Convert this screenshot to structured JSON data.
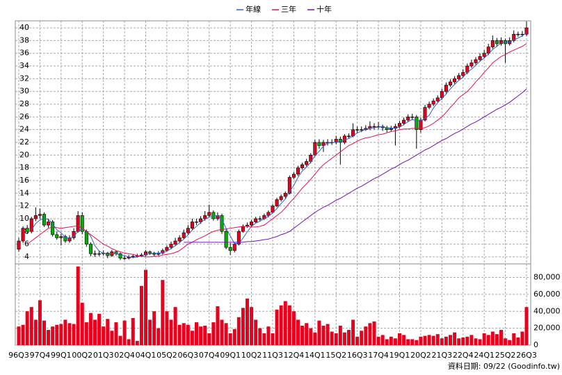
{
  "chart_data": {
    "type": "candlestick",
    "source": "資料日期: 09/22  (Goodinfo.tw)",
    "categories": [
      "96Q3",
      null,
      null,
      null,
      null,
      "97Q4",
      null,
      null,
      null,
      null,
      "99Q1",
      null,
      null,
      null,
      null,
      "00Q2",
      null,
      null,
      null,
      null,
      "01Q3",
      null,
      null,
      null,
      null,
      "02Q4",
      null,
      null,
      null,
      null,
      "04Q1",
      null,
      null,
      null,
      null,
      "05Q2",
      null,
      null,
      null,
      null,
      "06Q3",
      null,
      null,
      null,
      null,
      "07Q4",
      null,
      null,
      null,
      null,
      "09Q1",
      null,
      null,
      null,
      null,
      "10Q2",
      null,
      null,
      null,
      null,
      "11Q3",
      null,
      null,
      null,
      null,
      "12Q4",
      null,
      null,
      null,
      null,
      "14Q1",
      null,
      null,
      null,
      null,
      "15Q2",
      null,
      null,
      null,
      null,
      "16Q3",
      null,
      null,
      null,
      null,
      "17Q4",
      null,
      null,
      null,
      null,
      "19Q1",
      null,
      null,
      null,
      null,
      "20Q2",
      null,
      null,
      null,
      null,
      "21Q3",
      null,
      null,
      null,
      null,
      "22Q4",
      null,
      null,
      null,
      null,
      "24Q1",
      null,
      null,
      null,
      null,
      "25Q2",
      null,
      null,
      null,
      null,
      "26Q3"
    ],
    "open": [
      5.2,
      6.5,
      8.5,
      8,
      10,
      10.5,
      10.7,
      9,
      9.5,
      7.5,
      7,
      7.2,
      6.5,
      7,
      8,
      10.5,
      8,
      6,
      4.5,
      4.5,
      4.5,
      4.6,
      4.2,
      4.8,
      4.5,
      3.8,
      3.8,
      4,
      4.1,
      4.2,
      4.3,
      4.8,
      4.6,
      4.4,
      4.6,
      5,
      5.5,
      6,
      6.5,
      7,
      7.8,
      8.5,
      9.5,
      9.5,
      10,
      10.5,
      11,
      10,
      10.5,
      8,
      5.5,
      5,
      6,
      8,
      8.8,
      9,
      9.5,
      10,
      10,
      10.5,
      11,
      12,
      13,
      13.5,
      14,
      16.5,
      17,
      18,
      18.5,
      19,
      20,
      22,
      21.5,
      22,
      22,
      22,
      22.5,
      22,
      23,
      23,
      24,
      24,
      24,
      24.2,
      24.5,
      24.5,
      24.5,
      24.3,
      24,
      24.2,
      24.5,
      25,
      25.5,
      26,
      26,
      24,
      25.5,
      27.5,
      28,
      28.5,
      29,
      30,
      31,
      31.5,
      32,
      32.5,
      33,
      34,
      34.5,
      35,
      35.5,
      36,
      37,
      38,
      37.5,
      38,
      37.5,
      38,
      39,
      39,
      39
    ],
    "high": [
      7,
      8.8,
      9,
      10.3,
      11.8,
      11.6,
      11,
      10,
      9.8,
      8,
      7.6,
      7.5,
      7.4,
      8.5,
      11.2,
      11,
      8.3,
      6.3,
      5,
      5,
      5,
      4.8,
      5.1,
      5,
      4.7,
      4.2,
      4.3,
      4.4,
      4.5,
      4.6,
      5.1,
      5,
      4.8,
      4.9,
      5.3,
      5.8,
      6.4,
      7,
      7.4,
      8.3,
      9,
      10,
      10,
      10.4,
      11.2,
      12.2,
      11.3,
      11,
      10.8,
      8.3,
      6.2,
      6.3,
      8.3,
      9.1,
      9.4,
      9.8,
      10.3,
      10.4,
      10.8,
      11.3,
      12.3,
      13.3,
      13.8,
      14.3,
      16.8,
      17.3,
      18.3,
      18.8,
      19.4,
      20.3,
      22.4,
      22.5,
      22.4,
      22.5,
      22.5,
      23,
      22.9,
      23.3,
      23.4,
      25,
      24.5,
      24.5,
      24.7,
      25.3,
      25,
      25.2,
      24.8,
      24.6,
      24.6,
      24.9,
      25.4,
      25.9,
      26.4,
      26.5,
      26.3,
      25.9,
      27.9,
      28.4,
      28.9,
      29.4,
      30.4,
      31.4,
      31.9,
      32.4,
      32.9,
      33.5,
      34.4,
      35,
      35.4,
      36,
      36.5,
      37.5,
      38.8,
      38.4,
      38.5,
      38.3,
      38.5,
      39.6,
      39.4,
      39.5,
      41
    ],
    "low": [
      4.8,
      6.2,
      7.6,
      7.7,
      9.6,
      10,
      8.7,
      8.6,
      7.2,
      6.7,
      5.8,
      6.2,
      6.2,
      6.7,
      7.8,
      7.6,
      5.6,
      4.1,
      4,
      4.1,
      4.2,
      3.8,
      4,
      4.2,
      3.5,
      3.5,
      3.6,
      3.8,
      3.9,
      4,
      4.1,
      4.3,
      4.1,
      4.2,
      4.4,
      4.8,
      5.2,
      5.7,
      6.2,
      6.8,
      7.5,
      8.2,
      9,
      9.2,
      9.7,
      10.2,
      9.7,
      9.7,
      7.6,
      5.2,
      4.3,
      4.7,
      5.8,
      7.8,
      8.6,
      8.8,
      9.3,
      9.6,
      9.8,
      10.2,
      10.8,
      11.8,
      12.7,
      13.2,
      13.8,
      16.2,
      16.7,
      17.7,
      18.2,
      18.7,
      19.8,
      21,
      20.5,
      21.5,
      21.6,
      21.7,
      18.5,
      21.7,
      22.6,
      22.8,
      23.5,
      23.6,
      23.8,
      23.9,
      24,
      24.1,
      23.8,
      23.6,
      23.7,
      21.5,
      24.2,
      24.7,
      25.2,
      25.5,
      21,
      23.5,
      25.3,
      27.2,
      27.7,
      28.2,
      28.7,
      29.7,
      30.7,
      31.2,
      31.7,
      32.2,
      32.7,
      33.7,
      34.2,
      34.7,
      35.2,
      35.7,
      36.7,
      37,
      37.2,
      34.5,
      37.2,
      37.7,
      38.6,
      38.6,
      38.7
    ],
    "close": [
      6.5,
      8.5,
      8,
      10,
      10.5,
      10.7,
      9,
      9.5,
      7.5,
      7,
      7.2,
      6.5,
      7,
      8,
      10.5,
      8,
      6,
      4.5,
      4.5,
      4.5,
      4.6,
      4.2,
      4.8,
      4.5,
      3.8,
      3.8,
      4,
      4.1,
      4.2,
      4.3,
      4.8,
      4.6,
      4.4,
      4.6,
      5,
      5.5,
      6,
      6.5,
      7,
      7.8,
      8.5,
      9.5,
      9.5,
      10,
      10.5,
      11,
      10,
      10.5,
      8,
      5.5,
      5,
      6,
      8,
      8.8,
      9,
      9.5,
      10,
      10,
      10.5,
      11,
      12,
      13,
      13.5,
      14,
      16.5,
      17,
      18,
      18.5,
      19,
      20,
      22,
      21.5,
      22,
      22,
      22,
      22.5,
      22,
      23,
      23,
      24,
      24,
      24,
      24.2,
      24.5,
      24.5,
      24.5,
      24.3,
      24,
      24.2,
      24.5,
      25,
      25.5,
      26,
      26,
      24,
      25.5,
      27.5,
      28,
      28.5,
      29,
      30,
      31,
      31.5,
      32,
      32.5,
      33,
      34,
      34.5,
      35,
      35.5,
      36,
      37,
      38,
      37.5,
      38,
      37.5,
      38,
      39,
      39,
      39,
      40
    ],
    "up_color": "#e8001c",
    "down_color": "#00b000",
    "series": [
      {
        "name": "年線",
        "color": "#3060d0",
        "values": [
          null,
          null,
          null,
          8.25,
          9.25,
          9.8,
          10.05,
          9.9,
          9.2,
          8.25,
          7.8,
          7.05,
          6.9,
          7.2,
          8,
          8.4,
          8.1,
          7.25,
          5.75,
          4.9,
          4.55,
          4.45,
          4.5,
          4.5,
          4.3,
          4.2,
          4.0,
          3.9,
          4.0,
          4.15,
          4.35,
          4.5,
          4.5,
          4.6,
          4.65,
          4.9,
          5.3,
          5.75,
          6.25,
          6.8,
          7.45,
          8.2,
          8.8,
          9.4,
          9.9,
          10.25,
          10.4,
          10.5,
          9.9,
          8.5,
          7.25,
          6.1,
          6.1,
          6.95,
          7.95,
          8.8,
          9.3,
          9.6,
          10,
          10.4,
          10.9,
          11.6,
          12.4,
          13.1,
          14.25,
          15.25,
          16.5,
          17.5,
          18.1,
          18.9,
          19.9,
          20.6,
          21.4,
          21.9,
          21.9,
          22.1,
          22.1,
          22.4,
          22.6,
          23,
          23.5,
          23.75,
          24.05,
          24.2,
          24.3,
          24.4,
          24.45,
          24.3,
          24.25,
          24.25,
          24.4,
          24.8,
          25.25,
          25.6,
          25.4,
          25.4,
          25.75,
          26.25,
          27.4,
          28.25,
          28.9,
          29.6,
          30.4,
          31.1,
          31.75,
          32.25,
          33,
          33.5,
          34.1,
          34.75,
          35.25,
          35.9,
          36.6,
          37.1,
          37.6,
          37.75,
          37.75,
          38.1,
          38.4,
          38.75,
          39.25
        ]
      },
      {
        "name": "三年",
        "color": "#e0105a",
        "values": [
          null,
          null,
          6,
          6.5,
          7,
          7.5,
          8,
          8.5,
          8.7,
          8.6,
          8.5,
          8.6,
          8.7,
          8.8,
          8.9,
          8.5,
          8,
          7.5,
          7,
          6.5,
          6.0,
          5.7,
          5.3,
          5.0,
          4.8,
          4.6,
          4.5,
          4.4,
          4.2,
          4.1,
          4.0,
          4.0,
          4.1,
          4.1,
          4.3,
          4.4,
          4.5,
          4.7,
          5.0,
          5.5,
          6.0,
          6.3,
          6.7,
          7.0,
          7.3,
          7.7,
          8.0,
          8.2,
          8.3,
          8.4,
          8.5,
          8.6,
          8.7,
          8.8,
          8.8,
          8.7,
          8.7,
          8.8,
          9.0,
          9.5,
          10,
          10.5,
          11,
          11.7,
          12.5,
          13.2,
          14,
          14.8,
          15.5,
          16.2,
          17,
          17.8,
          18.5,
          19,
          19.5,
          20,
          20.5,
          21,
          21.5,
          21.8,
          22.2,
          22.5,
          22.7,
          22.8,
          23,
          23.2,
          23.3,
          23.5,
          23.7,
          23.8,
          24,
          24.1,
          24.1,
          24.2,
          24.2,
          24.2,
          24.3,
          24.6,
          25,
          25.5,
          26,
          26.7,
          27.5,
          28.2,
          29,
          29.5,
          30,
          30.7,
          31.5,
          32.2,
          33,
          33.7,
          34.5,
          35,
          35.5,
          35.8,
          36.2,
          36.5,
          36.8,
          37.1,
          37.5
        ]
      },
      {
        "name": "十年",
        "color": "#7a10b0",
        "values": [
          null,
          null,
          null,
          null,
          null,
          null,
          null,
          null,
          null,
          null,
          null,
          null,
          null,
          null,
          null,
          null,
          null,
          null,
          null,
          null,
          null,
          null,
          null,
          null,
          null,
          null,
          null,
          null,
          null,
          null,
          null,
          null,
          null,
          null,
          null,
          null,
          null,
          null,
          null,
          6.3,
          6.3,
          6.3,
          6.3,
          6.3,
          6.3,
          6.3,
          6.3,
          6.3,
          6.3,
          6.3,
          6.3,
          6.3,
          6.3,
          6.3,
          6.4,
          6.4,
          6.5,
          6.6,
          6.7,
          6.8,
          7.0,
          7.2,
          7.5,
          7.7,
          8.0,
          8.5,
          9.0,
          9.5,
          10,
          10.5,
          11,
          11.4,
          11.8,
          12.1,
          12.5,
          12.9,
          13.2,
          13.6,
          14,
          14.4,
          14.8,
          15.1,
          15.5,
          15.9,
          16.3,
          16.6,
          17,
          17.4,
          17.8,
          18.1,
          18.5,
          18.9,
          19.2,
          19.6,
          20,
          20.4,
          20.8,
          21.1,
          21.5,
          21.9,
          22.3,
          22.6,
          23,
          23.4,
          23.7,
          24.1,
          24.5,
          24.9,
          25.2,
          25.6,
          26,
          26.4,
          26.8,
          27.2,
          27.5,
          27.9,
          28.3,
          28.8,
          29.3,
          29.8,
          30.4
        ]
      }
    ],
    "ylim": [
      2.9,
      41.1
    ],
    "yticks": [
      4,
      6,
      8,
      10,
      12,
      14,
      16,
      18,
      20,
      22,
      24,
      26,
      28,
      30,
      32,
      34,
      36,
      38,
      40
    ],
    "grid": true,
    "volume": {
      "color": "#e8001c",
      "ylim": [
        0,
        96000
      ],
      "yticks": [
        0,
        {
          "value": 20000,
          "label": "20,000"
        },
        {
          "value": 40000,
          "label": "40,000"
        },
        {
          "value": 60000,
          "label": "60,000"
        },
        {
          "value": 80000,
          "label": "80,000"
        }
      ],
      "values": [
        22000,
        24000,
        40000,
        45000,
        30000,
        53000,
        29000,
        18000,
        22000,
        24000,
        25000,
        30000,
        26000,
        25000,
        93000,
        50000,
        27000,
        38000,
        30000,
        37000,
        22000,
        31000,
        17000,
        27000,
        11000,
        29000,
        7000,
        32000,
        5000,
        70000,
        89000,
        30000,
        40000,
        20000,
        77000,
        40000,
        30000,
        45000,
        24000,
        26000,
        24000,
        17000,
        27000,
        22000,
        23000,
        14000,
        27000,
        46000,
        30000,
        26000,
        14000,
        19000,
        33000,
        44000,
        55000,
        45000,
        30000,
        20000,
        14000,
        22000,
        14000,
        42000,
        47000,
        52000,
        47000,
        40000,
        30000,
        23000,
        26000,
        20000,
        15000,
        29000,
        23000,
        25000,
        16000,
        14000,
        23000,
        15000,
        18000,
        30000,
        10000,
        17000,
        22000,
        26000,
        28000,
        10000,
        12000,
        7000,
        10000,
        8000,
        14000,
        12000,
        7000,
        7000,
        6000,
        10000,
        11000,
        12000,
        11000,
        13000,
        8000,
        10000,
        12000,
        15000,
        8000,
        9000,
        10000,
        12000,
        8000,
        7000,
        14000,
        12000,
        16000,
        13000,
        18000,
        8000,
        6000,
        14000,
        9000,
        16000,
        45000
      ]
    }
  }
}
